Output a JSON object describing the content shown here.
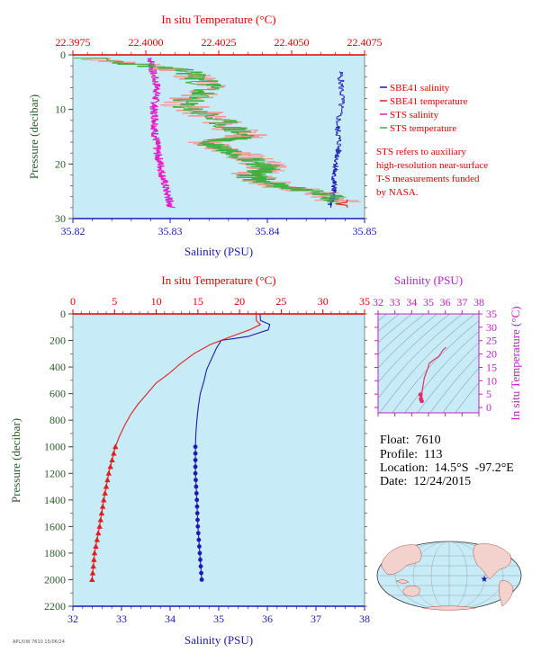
{
  "colors": {
    "plot_bg": "#c8ecf7",
    "sbe_salinity": "#1a1ab4",
    "sbe_temperature": "#e02020",
    "sts_salinity": "#e020c8",
    "sts_temperature": "#40b040",
    "sts_temperature_faint": "#f29a9a",
    "label_red": "#e00000",
    "label_blue": "#1a1ab4",
    "label_green": "#2a5a2a",
    "label_magenta": "#c020c0"
  },
  "top_panel": {
    "legend": [
      {
        "label": "SBE41 salinity",
        "color_key": "sbe_salinity"
      },
      {
        "label": "SBE41 temperature",
        "color_key": "sbe_temperature"
      },
      {
        "label": "STS salinity",
        "color_key": "sts_salinity"
      },
      {
        "label": "STS temperature",
        "color_key": "sts_temperature"
      }
    ],
    "note_lines": [
      "STS refers to auxiliary",
      "high-resolution near-surface",
      "T-S measurements funded",
      "by NASA."
    ]
  },
  "info": {
    "float": "Float:  7610",
    "profile": "Profile:  113",
    "location": "Location:  14.5°S  -97.2°E",
    "date": "Date:  12/24/2015"
  },
  "footer_text": "APL/UW 7610 15/06/24",
  "chart_data": [
    {
      "id": "near-surface",
      "type": "line",
      "title": "",
      "xlabel": "Salinity (PSU)",
      "x2label": "In situ Temperature (°C)",
      "ylabel": "Pressure (decibar)",
      "xlim": [
        35.82,
        35.85
      ],
      "x2lim": [
        22.3975,
        22.4075
      ],
      "ylim": [
        30,
        0
      ],
      "xticks": [
        35.82,
        35.83,
        35.84,
        35.85
      ],
      "x2ticks": [
        22.3975,
        22.4,
        22.4025,
        22.405,
        22.4075
      ],
      "yticks": [
        0,
        10,
        20,
        30
      ],
      "series": [
        {
          "name": "SBE41 salinity",
          "axis": "bottom",
          "x": [
            35.8475,
            35.8477,
            35.8472,
            35.8474,
            35.8471,
            35.8468,
            35.8469,
            35.8467,
            35.8463
          ],
          "y": [
            3,
            8,
            13,
            16,
            20,
            22,
            24,
            26,
            28
          ]
        },
        {
          "name": "SBE41 temperature",
          "axis": "top",
          "x": [
            22.4069,
            22.4069,
            22.4065,
            22.4069,
            22.4069
          ],
          "y": [
            26.5,
            27,
            27.3,
            27.6,
            28
          ]
        },
        {
          "name": "STS salinity",
          "axis": "bottom",
          "x": [
            35.828,
            35.8282,
            35.8287,
            35.8285,
            35.8283,
            35.8285,
            35.8284,
            35.8286,
            35.8287,
            35.829,
            35.8292,
            35.8295,
            35.8298,
            35.83,
            35.8301
          ],
          "y": [
            0.5,
            3,
            6,
            8,
            10,
            12,
            14,
            16,
            18,
            20,
            22,
            24,
            26,
            27,
            28
          ]
        },
        {
          "name": "STS temperature",
          "axis": "top",
          "x": [
            22.398,
            22.4015,
            22.4022,
            22.4012,
            22.4025,
            22.4035,
            22.402,
            22.4032,
            22.404,
            22.4042,
            22.4035,
            22.4045,
            22.4058,
            22.4068
          ],
          "y": [
            0.5,
            3,
            6,
            9,
            12,
            15,
            16,
            18,
            20,
            21,
            22,
            24,
            25,
            27
          ]
        }
      ]
    },
    {
      "id": "full-profile",
      "type": "line",
      "title": "",
      "xlabel": "Salinity (PSU)",
      "x2label": "In situ Temperature (°C)",
      "ylabel": "Pressure (decibar)",
      "xlim": [
        32,
        38
      ],
      "x2lim": [
        0,
        35
      ],
      "ylim": [
        2200,
        0
      ],
      "xticks": [
        32,
        33,
        34,
        35,
        36,
        37,
        38
      ],
      "x2ticks": [
        0,
        5,
        10,
        15,
        20,
        25,
        30,
        35
      ],
      "yticks": [
        0,
        200,
        400,
        600,
        800,
        1000,
        1200,
        1400,
        1600,
        1800,
        2000,
        2200
      ],
      "series": [
        {
          "name": "Salinity",
          "axis": "bottom",
          "x": [
            35.85,
            35.86,
            36.05,
            36.02,
            35.6,
            35.05,
            34.95,
            34.85,
            34.75,
            34.7,
            34.62,
            34.58,
            34.55,
            34.53,
            34.52,
            34.52,
            34.55,
            34.57,
            34.59,
            34.61,
            34.63,
            34.65
          ],
          "y": [
            0,
            50,
            80,
            120,
            170,
            200,
            260,
            340,
            420,
            500,
            600,
            700,
            800,
            900,
            1000,
            1200,
            1400,
            1600,
            1700,
            1800,
            1900,
            2000
          ]
        },
        {
          "name": "Temperature",
          "axis": "top",
          "x": [
            22.0,
            22.0,
            22.5,
            21.2,
            19.0,
            16.5,
            14.5,
            12.8,
            11.5,
            10.0,
            8.9,
            7.8,
            6.9,
            6.2,
            5.6,
            5.1,
            4.3,
            3.7,
            3.2,
            2.9,
            2.6,
            2.45,
            2.3
          ],
          "y": [
            0,
            50,
            80,
            120,
            170,
            230,
            300,
            380,
            450,
            520,
            600,
            680,
            760,
            840,
            920,
            1000,
            1200,
            1400,
            1600,
            1700,
            1800,
            1900,
            2000
          ]
        }
      ]
    },
    {
      "id": "ts-diagram",
      "type": "line",
      "title": "",
      "xlabel": "Salinity (PSU)",
      "ylabel": "In situ Temperature (°C)",
      "xlim": [
        32,
        38
      ],
      "ylim": [
        -2,
        35
      ],
      "xticks": [
        32,
        33,
        34,
        35,
        36,
        37,
        38
      ],
      "yticks": [
        0,
        5,
        10,
        15,
        20,
        25,
        30,
        35
      ],
      "series": [
        {
          "name": "T-S",
          "x": [
            34.52,
            34.55,
            34.6,
            34.62,
            34.75,
            34.95,
            35.05,
            35.35,
            35.6,
            35.86,
            36.05
          ],
          "y": [
            4.8,
            3.2,
            2.4,
            6.0,
            11.0,
            14.5,
            16.5,
            18.0,
            19.0,
            21.5,
            22.5
          ]
        }
      ]
    }
  ]
}
